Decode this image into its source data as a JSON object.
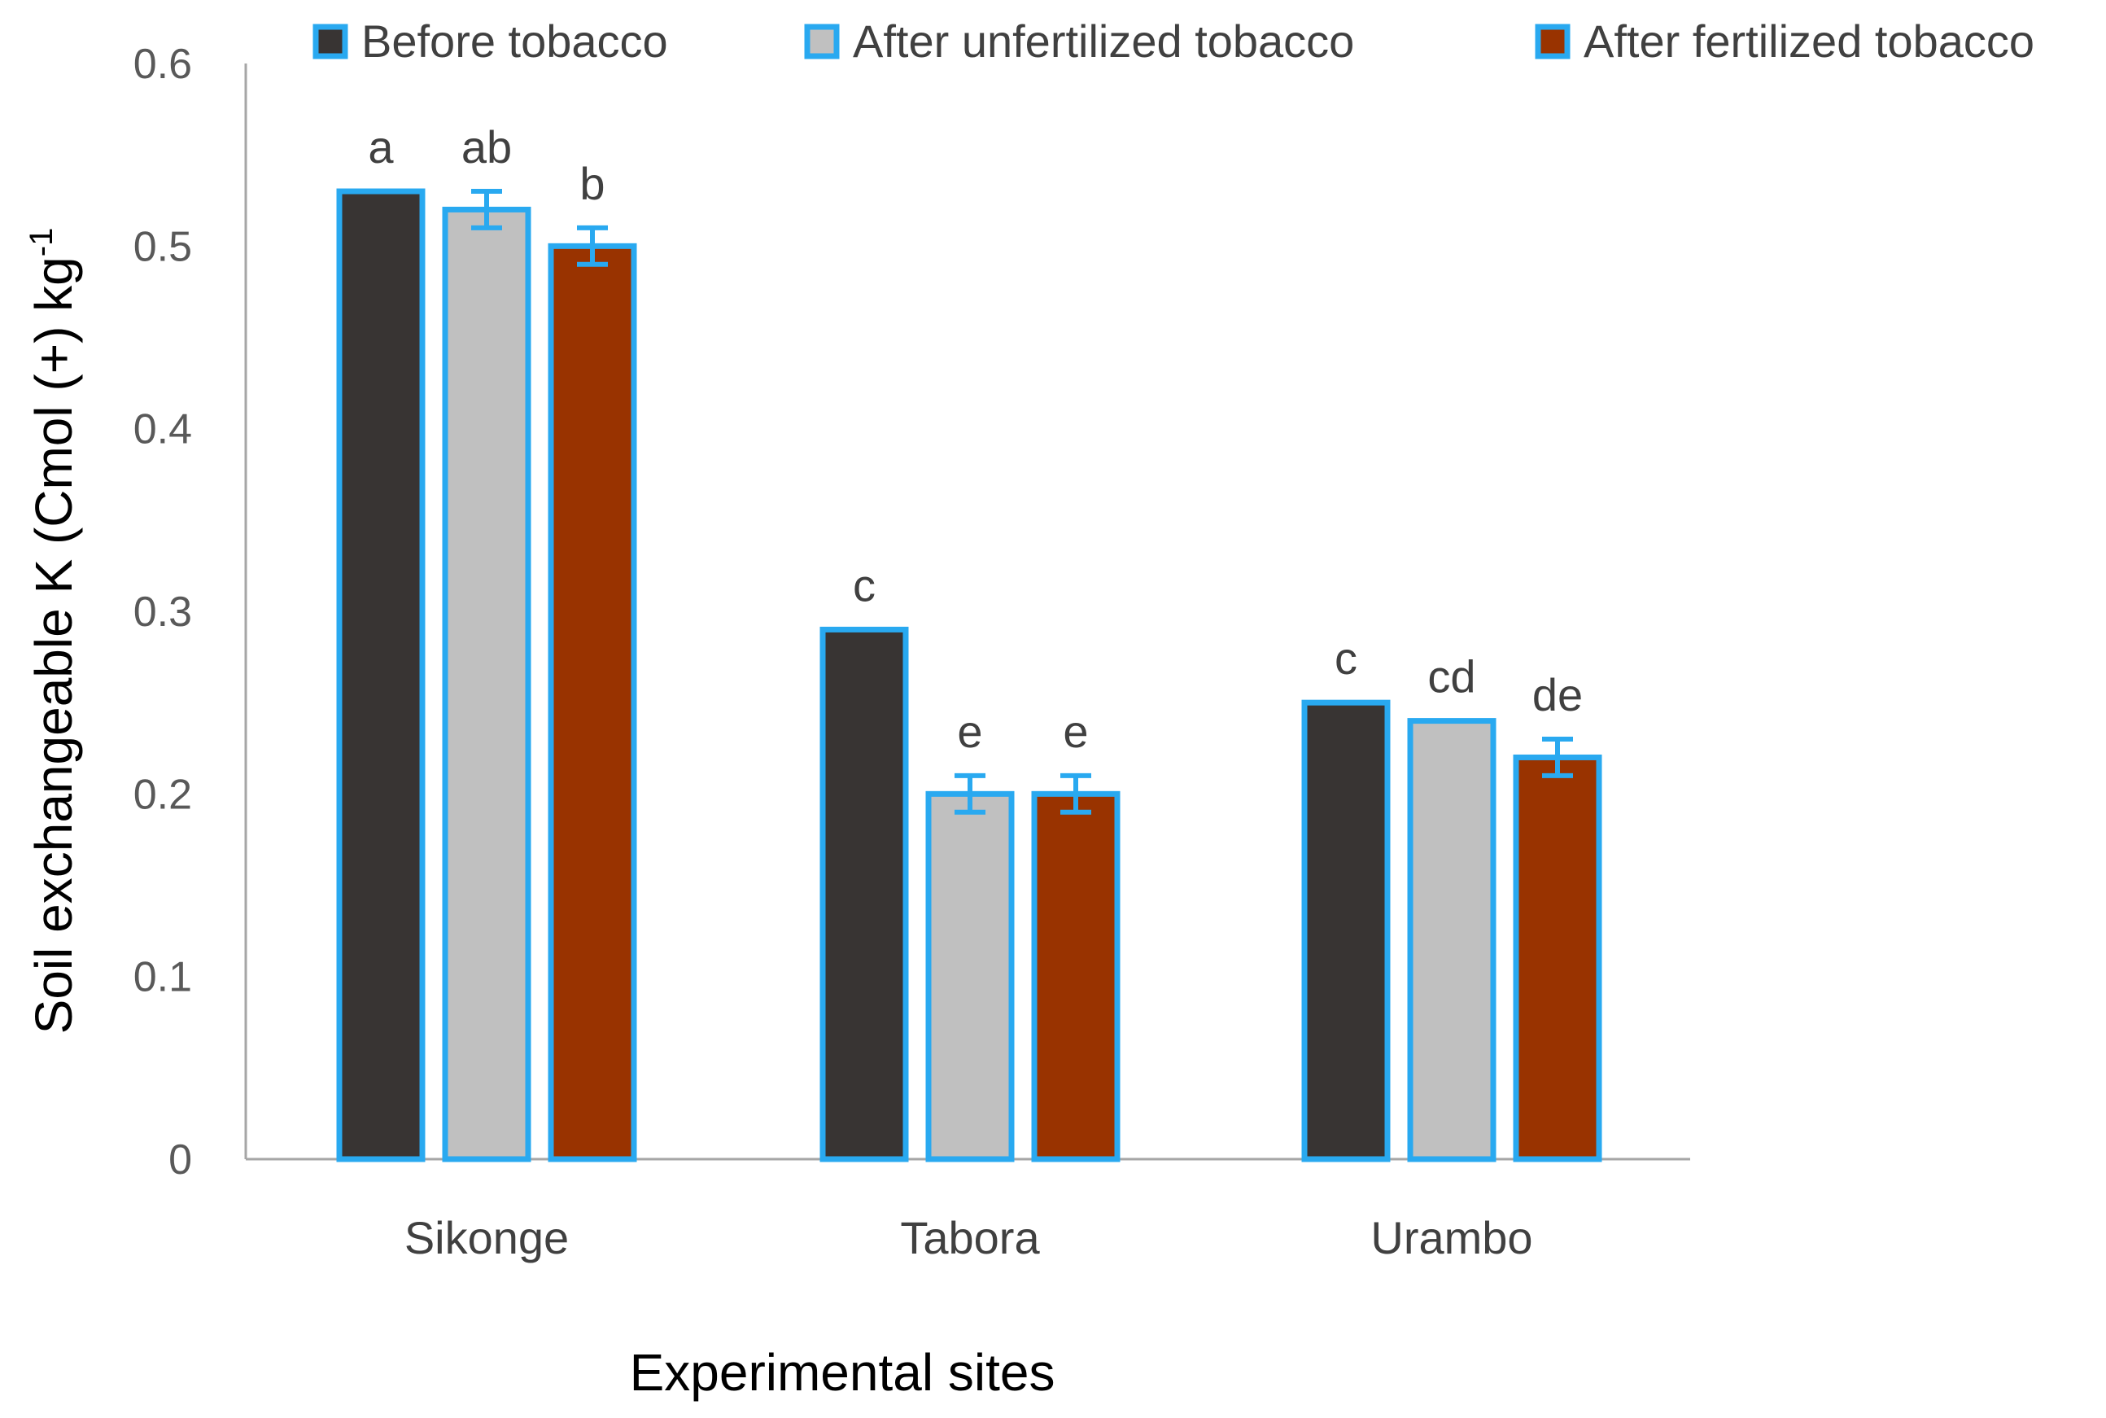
{
  "chart_data": {
    "type": "bar",
    "title": "",
    "xlabel": "Experimental sites",
    "ylabel": {
      "main": "Soil exchangeable K (Cmol (+) kg",
      "superscript": "-1"
    },
    "ylim": [
      0,
      0.6
    ],
    "yticks": [
      "0",
      "0.1",
      "0.2",
      "0.3",
      "0.4",
      "0.5",
      "0.6"
    ],
    "grid": false,
    "legend_position": "top",
    "categories": [
      "Sikonge",
      "Tabora",
      "Urambo"
    ],
    "series": [
      {
        "name": "Before tobacco",
        "color": "#383433",
        "values": [
          0.53,
          0.29,
          0.25
        ],
        "errors": [
          0,
          0,
          0
        ],
        "letters": [
          "a",
          "c",
          "c"
        ]
      },
      {
        "name": "After unfertilized tobacco",
        "color": "#c0c0c0",
        "values": [
          0.52,
          0.2,
          0.24
        ],
        "errors": [
          0.01,
          0.01,
          0
        ],
        "letters": [
          "ab",
          "e",
          "cd"
        ]
      },
      {
        "name": "After fertilized tobacco",
        "color": "#993300",
        "values": [
          0.5,
          0.2,
          0.22
        ],
        "errors": [
          0.01,
          0.01,
          0.01
        ],
        "letters": [
          "b",
          "e",
          "de"
        ]
      }
    ],
    "bar_outline_color": "#29a9f0",
    "axis_color": "#a6a6a6"
  }
}
